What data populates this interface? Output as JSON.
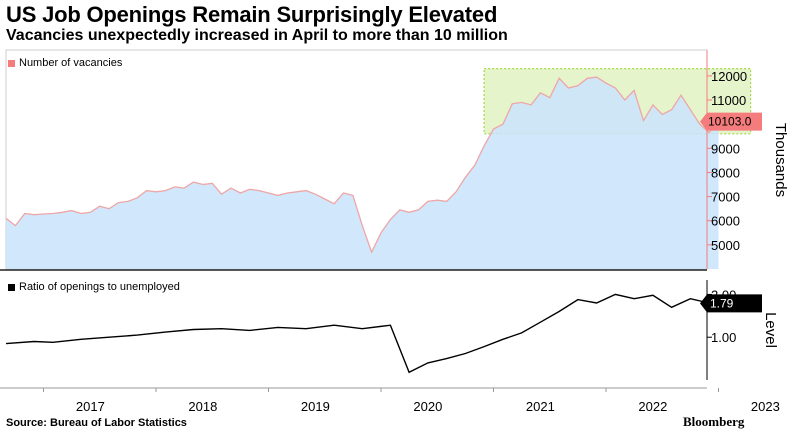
{
  "header": {
    "title": "US Job Openings Remain Surprisingly Elevated",
    "subtitle": "Vacancies unexpectedly increased in April to more than 10 million"
  },
  "footer": {
    "source": "Source: Bureau of Labor Statistics",
    "brand": "Bloomberg"
  },
  "colors": {
    "vacancy_fill": "#c9e3fb",
    "vacancy_line": "#eea6a6",
    "vacancy_badge": "#f47c7c",
    "highlight_fill": "#e6f4cc",
    "highlight_border": "#a6d64a",
    "ratio_line": "#000000"
  },
  "chart_data": [
    {
      "type": "area",
      "legend": "Number of vacancies",
      "ylabel": "Thousands",
      "ylim": [
        4000,
        12700
      ],
      "yticks": [
        5000,
        6000,
        7000,
        8000,
        9000,
        10000,
        11000,
        12000
      ],
      "ytick_labels": [
        "5000",
        "6000",
        "7000",
        "8000",
        "9000",
        "10000",
        "11000",
        "12000"
      ],
      "last_value_label": "10103.0",
      "highlight_range": {
        "y": [
          9600,
          12300
        ],
        "x": [
          "2020-12",
          "2023-04"
        ]
      },
      "series": [
        {
          "name": "Number of vacancies",
          "x": [
            "2016-09",
            "2016-10",
            "2016-11",
            "2016-12",
            "2017-01",
            "2017-02",
            "2017-03",
            "2017-04",
            "2017-05",
            "2017-06",
            "2017-07",
            "2017-08",
            "2017-09",
            "2017-10",
            "2017-11",
            "2017-12",
            "2018-01",
            "2018-02",
            "2018-03",
            "2018-04",
            "2018-05",
            "2018-06",
            "2018-07",
            "2018-08",
            "2018-09",
            "2018-10",
            "2018-11",
            "2018-12",
            "2019-01",
            "2019-02",
            "2019-03",
            "2019-04",
            "2019-05",
            "2019-06",
            "2019-07",
            "2019-08",
            "2019-09",
            "2019-10",
            "2019-11",
            "2019-12",
            "2020-01",
            "2020-02",
            "2020-03",
            "2020-04",
            "2020-05",
            "2020-06",
            "2020-07",
            "2020-08",
            "2020-09",
            "2020-10",
            "2020-11",
            "2020-12",
            "2021-01",
            "2021-02",
            "2021-03",
            "2021-04",
            "2021-05",
            "2021-06",
            "2021-07",
            "2021-08",
            "2021-09",
            "2021-10",
            "2021-11",
            "2021-12",
            "2022-01",
            "2022-02",
            "2022-03",
            "2022-04",
            "2022-05",
            "2022-06",
            "2022-07",
            "2022-08",
            "2022-09",
            "2022-10",
            "2022-11",
            "2022-12",
            "2023-01",
            "2023-02",
            "2023-03",
            "2023-04"
          ],
          "values": [
            6100,
            5800,
            6300,
            6250,
            6280,
            6300,
            6350,
            6420,
            6300,
            6350,
            6600,
            6500,
            6750,
            6800,
            6950,
            7250,
            7200,
            7250,
            7400,
            7350,
            7600,
            7500,
            7550,
            7100,
            7350,
            7150,
            7300,
            7250,
            7150,
            7050,
            7150,
            7200,
            7250,
            7100,
            6900,
            6700,
            7150,
            7050,
            5800,
            4700,
            5500,
            6050,
            6450,
            6350,
            6450,
            6800,
            6850,
            6800,
            7200,
            7800,
            8300,
            9100,
            9800,
            10000,
            10850,
            10900,
            10800,
            11300,
            11100,
            11900,
            11500,
            11600,
            11900,
            11950,
            11700,
            11500,
            11000,
            11400,
            10150,
            10800,
            10400,
            10600,
            11200,
            10600,
            10000,
            9650,
            10103,
            null,
            null,
            null
          ]
        }
      ]
    },
    {
      "type": "line",
      "legend": "Ratio of openings to unemployed",
      "ylabel": "Level",
      "ylim": [
        0,
        2.15
      ],
      "yticks": [
        1.0,
        2.0
      ],
      "ytick_labels": [
        "1.00",
        "2.00"
      ],
      "last_value_label": "1.79",
      "xtick_labels": [
        "2017",
        "2018",
        "2019",
        "2020",
        "2021",
        "2022",
        "2023"
      ],
      "series": [
        {
          "name": "Ratio of openings to unemployed",
          "x": [
            "2016-09",
            "2016-12",
            "2017-02",
            "2017-05",
            "2017-08",
            "2017-11",
            "2018-02",
            "2018-05",
            "2018-08",
            "2018-11",
            "2019-02",
            "2019-05",
            "2019-08",
            "2019-11",
            "2020-02",
            "2020-04",
            "2020-06",
            "2020-08",
            "2020-10",
            "2020-12",
            "2021-02",
            "2021-04",
            "2021-06",
            "2021-08",
            "2021-10",
            "2021-12",
            "2022-02",
            "2022-04",
            "2022-06",
            "2022-08",
            "2022-10",
            "2022-12",
            "2023-02",
            "2023-04"
          ],
          "values": [
            0.85,
            0.9,
            0.88,
            0.95,
            1.0,
            1.05,
            1.12,
            1.18,
            1.2,
            1.16,
            1.23,
            1.2,
            1.28,
            1.2,
            1.28,
            0.18,
            0.4,
            0.5,
            0.62,
            0.78,
            0.95,
            1.1,
            1.35,
            1.6,
            1.88,
            1.8,
            2.0,
            1.9,
            1.98,
            1.7,
            1.9,
            1.8,
            1.95,
            1.79
          ]
        }
      ]
    }
  ]
}
